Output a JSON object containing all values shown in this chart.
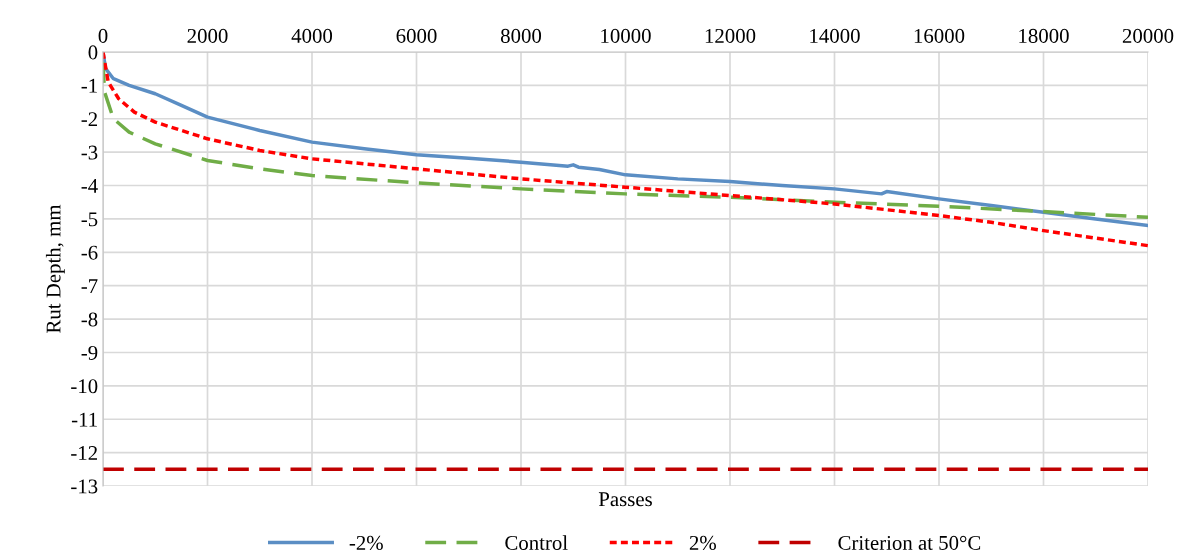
{
  "chart_data": {
    "type": "line",
    "xlabel": "Passes",
    "ylabel": "Rut Depth, mm",
    "xlim": [
      0,
      20000
    ],
    "xticks": [
      0,
      2000,
      4000,
      6000,
      8000,
      10000,
      12000,
      14000,
      16000,
      18000,
      20000
    ],
    "ylim": [
      -13,
      0
    ],
    "yticks": [
      -13,
      -12,
      -11,
      -10,
      -9,
      -8,
      -7,
      -6,
      -5,
      -4,
      -3,
      -2,
      -1,
      0
    ],
    "grid": true,
    "legend": "bottom",
    "marker": "none",
    "series": [
      {
        "name": "-2%",
        "color": "#5b8ec4",
        "line_style": "solid",
        "x": [
          0,
          50,
          200,
          500,
          1000,
          1500,
          2000,
          3000,
          4000,
          5000,
          6000,
          7000,
          8000,
          8900,
          9000,
          9100,
          9500,
          10000,
          11000,
          12000,
          13000,
          14000,
          14900,
          15000,
          16000,
          17000,
          18000,
          19000,
          20000
        ],
        "values": [
          0,
          -0.5,
          -0.8,
          -1.0,
          -1.25,
          -1.6,
          -1.95,
          -2.35,
          -2.7,
          -2.9,
          -3.08,
          -3.18,
          -3.3,
          -3.42,
          -3.38,
          -3.45,
          -3.52,
          -3.68,
          -3.8,
          -3.88,
          -4.0,
          -4.1,
          -4.25,
          -4.18,
          -4.4,
          -4.6,
          -4.8,
          -5.0,
          -5.2
        ]
      },
      {
        "name": "Control",
        "color": "#70ad47",
        "line_style": "dashed",
        "x": [
          0,
          30,
          200,
          500,
          1000,
          2000,
          3000,
          4000,
          6000,
          8000,
          10000,
          12000,
          14000,
          16000,
          18000,
          20000
        ],
        "values": [
          -0.3,
          -1.2,
          -2.0,
          -2.4,
          -2.75,
          -3.25,
          -3.5,
          -3.7,
          -3.92,
          -4.1,
          -4.25,
          -4.35,
          -4.5,
          -4.62,
          -4.78,
          -4.95
        ]
      },
      {
        "name": "2%",
        "color": "#ff0000",
        "line_style": "dotted",
        "x": [
          0,
          100,
          300,
          600,
          1000,
          2000,
          3000,
          4000,
          6000,
          8000,
          10000,
          12000,
          14000,
          16000,
          17000,
          18000,
          20000
        ],
        "values": [
          0,
          -0.9,
          -1.4,
          -1.8,
          -2.1,
          -2.6,
          -2.95,
          -3.2,
          -3.5,
          -3.8,
          -4.05,
          -4.3,
          -4.55,
          -4.9,
          -5.1,
          -5.35,
          -5.8
        ]
      },
      {
        "name": "Criterion at 50°C",
        "color": "#c00000",
        "line_style": "dashed",
        "x": [
          0,
          20000
        ],
        "values": [
          -12.5,
          -12.5
        ]
      }
    ]
  }
}
